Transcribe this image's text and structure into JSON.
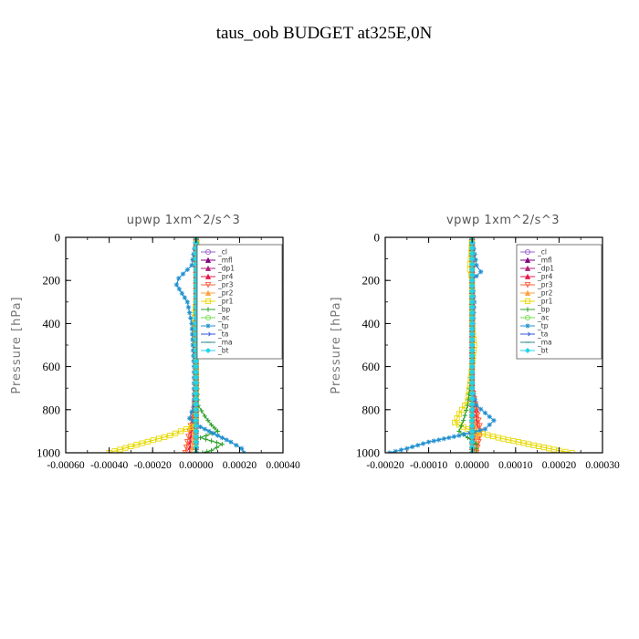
{
  "title": "taus_oob  BUDGET at325E,0N",
  "legend_entries": [
    "_cl",
    "_mfl",
    "_dp1",
    "_pr4",
    "_pr3",
    "_pr2",
    "_pr1",
    "_bp",
    "_ac",
    "_tp",
    "_ta",
    "_ma",
    "_bt"
  ],
  "colors": {
    "_cl": "#9966cc",
    "_mfl": "#800080",
    "_dp1": "#b0207a",
    "_pr4": "#e6194b",
    "_pr3": "#ff5a36",
    "_pr2": "#ffa040",
    "_pr1": "#e8d800",
    "_bp": "#2ea02c",
    "_ac": "#77dd55",
    "_tp": "#1f8fd0",
    "_ta": "#3355dd",
    "_ma": "#2a8a8a",
    "_bt": "#22d3ee"
  },
  "chart_data": [
    {
      "type": "line",
      "title": "upwp   1xm^2/s^3",
      "ylabel": "Pressure [hPa]",
      "xlabel": "",
      "xlim": [
        -0.0006,
        0.0004
      ],
      "ylim": [
        1000,
        0
      ],
      "y_inverted": true,
      "yticks": [
        0,
        200,
        400,
        600,
        800,
        1000
      ],
      "ytick_labels": [
        "0",
        "200",
        "400",
        "600",
        "800",
        "1000"
      ],
      "xticks": [
        -0.0006,
        -0.0004,
        -0.0002,
        0.0,
        0.0002,
        0.0004
      ],
      "xtick_labels": [
        "-0.00060",
        "-0.00040",
        "-0.00020",
        "0.00000",
        "0.00020",
        "0.00040"
      ],
      "legend_position": "top-right",
      "series": [
        {
          "name": "_cl",
          "marker": "circle",
          "x": [
            0,
            0,
            0,
            0,
            0,
            0,
            0,
            0,
            0,
            0,
            0
          ],
          "y": [
            0,
            100,
            200,
            300,
            400,
            500,
            600,
            700,
            800,
            900,
            1000
          ]
        },
        {
          "name": "_mfl",
          "marker": "triangle",
          "x": [
            0,
            0,
            0,
            0,
            0,
            0,
            0,
            0,
            0,
            0,
            0
          ],
          "y": [
            0,
            100,
            200,
            300,
            400,
            500,
            600,
            700,
            800,
            900,
            1000
          ]
        },
        {
          "name": "_dp1",
          "marker": "triangle",
          "x": [
            0,
            0,
            0,
            0,
            0,
            0,
            0,
            0,
            0,
            0,
            0
          ],
          "y": [
            0,
            100,
            200,
            300,
            400,
            500,
            600,
            700,
            800,
            900,
            1000
          ]
        },
        {
          "name": "_pr4",
          "marker": "triangle",
          "x": [
            0,
            0,
            0,
            0,
            0,
            0,
            0,
            0,
            -1e-05,
            -2e-05,
            -3e-05
          ],
          "y": [
            0,
            100,
            200,
            300,
            400,
            500,
            600,
            700,
            800,
            900,
            1000
          ]
        },
        {
          "name": "_pr3",
          "marker": "triangle-down",
          "x": [
            0,
            0,
            0,
            0,
            0,
            0,
            0,
            0,
            -1e-05,
            -3e-05,
            -5e-05
          ],
          "y": [
            0,
            100,
            200,
            300,
            400,
            500,
            600,
            700,
            800,
            900,
            1000
          ]
        },
        {
          "name": "_pr2",
          "marker": "triangle",
          "x": [
            0,
            0,
            1e-05,
            0,
            0,
            0,
            0,
            0,
            0,
            -1e-05,
            -2e-05
          ],
          "y": [
            0,
            100,
            200,
            300,
            400,
            500,
            600,
            700,
            800,
            900,
            1000
          ]
        },
        {
          "name": "_pr1",
          "marker": "square",
          "x": [
            0,
            2e-05,
            6e-05,
            4e-05,
            0,
            -1e-05,
            0,
            0,
            0,
            -2e-05,
            -0.00012,
            -0.0003,
            -0.0004
          ],
          "y": [
            0,
            140,
            180,
            230,
            300,
            400,
            600,
            800,
            850,
            880,
            920,
            970,
            1000
          ]
        },
        {
          "name": "_bp",
          "marker": "plus",
          "x": [
            0,
            0,
            0,
            0,
            0,
            0,
            1e-05,
            4e-05,
            7e-05,
            0.0001,
            2e-05,
            0.00012,
            7e-05,
            3e-05
          ],
          "y": [
            0,
            100,
            200,
            300,
            400,
            600,
            780,
            830,
            870,
            900,
            930,
            960,
            990,
            1000
          ]
        },
        {
          "name": "_ac",
          "marker": "circle",
          "x": [
            0,
            0,
            0,
            0,
            0,
            0,
            0,
            0,
            0,
            0,
            0
          ],
          "y": [
            0,
            100,
            200,
            300,
            400,
            500,
            600,
            700,
            800,
            900,
            1000
          ]
        },
        {
          "name": "_tp",
          "marker": "star",
          "x": [
            0,
            -2e-05,
            -8e-05,
            -9e-05,
            -4e-05,
            -2e-05,
            -1e-05,
            -1e-05,
            -3e-05,
            2e-05,
            0.0001,
            0.00016,
            0.00021,
            0.00022
          ],
          "y": [
            0,
            130,
            190,
            220,
            300,
            400,
            600,
            780,
            840,
            880,
            920,
            950,
            980,
            1000
          ]
        },
        {
          "name": "_ta",
          "marker": "arrow",
          "x": [
            0,
            0,
            0,
            0,
            0,
            0,
            0,
            0,
            0,
            0,
            0
          ],
          "y": [
            0,
            100,
            200,
            300,
            400,
            500,
            600,
            700,
            800,
            900,
            1000
          ]
        },
        {
          "name": "_ma",
          "marker": "dash",
          "x": [
            0,
            0,
            0,
            0,
            0,
            0,
            0,
            0,
            0,
            0,
            0
          ],
          "y": [
            0,
            100,
            200,
            300,
            400,
            500,
            600,
            700,
            800,
            900,
            1000
          ]
        },
        {
          "name": "_bt",
          "marker": "diamond",
          "x": [
            0,
            0,
            0,
            0,
            0,
            0,
            0,
            0,
            0,
            0,
            0
          ],
          "y": [
            0,
            100,
            200,
            300,
            400,
            500,
            600,
            700,
            800,
            900,
            1000
          ]
        }
      ]
    },
    {
      "type": "line",
      "title": "vpwp   1xm^2/s^3",
      "ylabel": "Pressure [hPa]",
      "xlabel": "",
      "xlim": [
        -0.0002,
        0.0003
      ],
      "ylim": [
        1000,
        0
      ],
      "y_inverted": true,
      "yticks": [
        0,
        200,
        400,
        600,
        800,
        1000
      ],
      "ytick_labels": [
        "0",
        "200",
        "400",
        "600",
        "800",
        "1000"
      ],
      "xticks": [
        -0.0002,
        -0.0001,
        0.0,
        0.0001,
        0.0002,
        0.0003
      ],
      "xtick_labels": [
        "-0.00020",
        "-0.00010",
        "0.00000",
        "0.00010",
        "0.00020",
        "0.00030"
      ],
      "legend_position": "top-right",
      "series": [
        {
          "name": "_cl",
          "marker": "circle",
          "x": [
            0,
            0,
            0,
            0,
            0,
            0,
            0,
            0,
            0,
            0,
            0
          ],
          "y": [
            0,
            100,
            200,
            300,
            400,
            500,
            600,
            700,
            800,
            900,
            1000
          ]
        },
        {
          "name": "_mfl",
          "marker": "triangle",
          "x": [
            0,
            0,
            0,
            0,
            0,
            0,
            0,
            0,
            0,
            0,
            0
          ],
          "y": [
            0,
            100,
            200,
            300,
            400,
            500,
            600,
            700,
            800,
            900,
            1000
          ]
        },
        {
          "name": "_dp1",
          "marker": "triangle",
          "x": [
            0,
            0,
            0,
            0,
            0,
            0,
            0,
            0,
            0,
            0,
            0
          ],
          "y": [
            0,
            100,
            200,
            300,
            400,
            500,
            600,
            700,
            800,
            900,
            1000
          ]
        },
        {
          "name": "_pr4",
          "marker": "triangle",
          "x": [
            0,
            0,
            0,
            0,
            0,
            0,
            0,
            0,
            1e-05,
            1e-05,
            0
          ],
          "y": [
            0,
            100,
            200,
            300,
            400,
            500,
            600,
            700,
            800,
            900,
            1000
          ]
        },
        {
          "name": "_pr3",
          "marker": "triangle-down",
          "x": [
            0,
            0,
            0,
            0,
            0,
            0,
            0,
            0,
            1e-05,
            2e-05,
            1e-05
          ],
          "y": [
            0,
            100,
            200,
            300,
            400,
            500,
            600,
            700,
            800,
            900,
            1000
          ]
        },
        {
          "name": "_pr2",
          "marker": "triangle",
          "x": [
            0,
            0,
            0,
            0,
            0,
            0,
            0,
            0,
            0,
            1e-05,
            1e-05
          ],
          "y": [
            0,
            100,
            200,
            300,
            400,
            500,
            600,
            700,
            800,
            900,
            1000
          ]
        },
        {
          "name": "_pr1",
          "marker": "square",
          "x": [
            0,
            -5e-06,
            0,
            0,
            0,
            5e-06,
            0,
            -1e-05,
            -3e-05,
            -4e-05,
            0,
            6e-05,
            0.00013,
            0.0002,
            0.00023
          ],
          "y": [
            0,
            150,
            200,
            300,
            400,
            500,
            600,
            760,
            820,
            860,
            900,
            930,
            960,
            990,
            1000
          ]
        },
        {
          "name": "_bp",
          "marker": "plus",
          "x": [
            0,
            0,
            0,
            0,
            0,
            0,
            0,
            -1e-05,
            -2e-05,
            -3e-05,
            -1e-05,
            1e-05,
            1e-05
          ],
          "y": [
            0,
            100,
            200,
            300,
            400,
            500,
            600,
            780,
            850,
            900,
            930,
            960,
            1000
          ]
        },
        {
          "name": "_ac",
          "marker": "circle",
          "x": [
            0,
            0,
            0,
            0,
            0,
            0,
            0,
            0,
            0,
            0,
            0
          ],
          "y": [
            0,
            100,
            200,
            300,
            400,
            500,
            600,
            700,
            800,
            900,
            1000
          ]
        },
        {
          "name": "_tp",
          "marker": "star",
          "x": [
            0,
            1e-05,
            2e-05,
            0,
            5e-06,
            0,
            0,
            1e-05,
            5e-05,
            3e-05,
            -3e-05,
            -0.0001,
            -0.00015,
            -0.00019
          ],
          "y": [
            0,
            130,
            160,
            200,
            300,
            500,
            700,
            780,
            850,
            890,
            920,
            950,
            980,
            1000
          ]
        },
        {
          "name": "_ta",
          "marker": "arrow",
          "x": [
            0,
            0,
            0,
            0,
            0,
            0,
            0,
            0,
            0,
            0,
            0
          ],
          "y": [
            0,
            100,
            200,
            300,
            400,
            500,
            600,
            700,
            800,
            900,
            1000
          ]
        },
        {
          "name": "_ma",
          "marker": "dash",
          "x": [
            0,
            0,
            0,
            0,
            0,
            0,
            0,
            0,
            0,
            0,
            0
          ],
          "y": [
            0,
            100,
            200,
            300,
            400,
            500,
            600,
            700,
            800,
            900,
            1000
          ]
        },
        {
          "name": "_bt",
          "marker": "diamond",
          "x": [
            0,
            0,
            0,
            0,
            0,
            0,
            0,
            0,
            0,
            0,
            0
          ],
          "y": [
            0,
            100,
            200,
            300,
            400,
            500,
            600,
            700,
            800,
            900,
            1000
          ]
        }
      ]
    }
  ]
}
